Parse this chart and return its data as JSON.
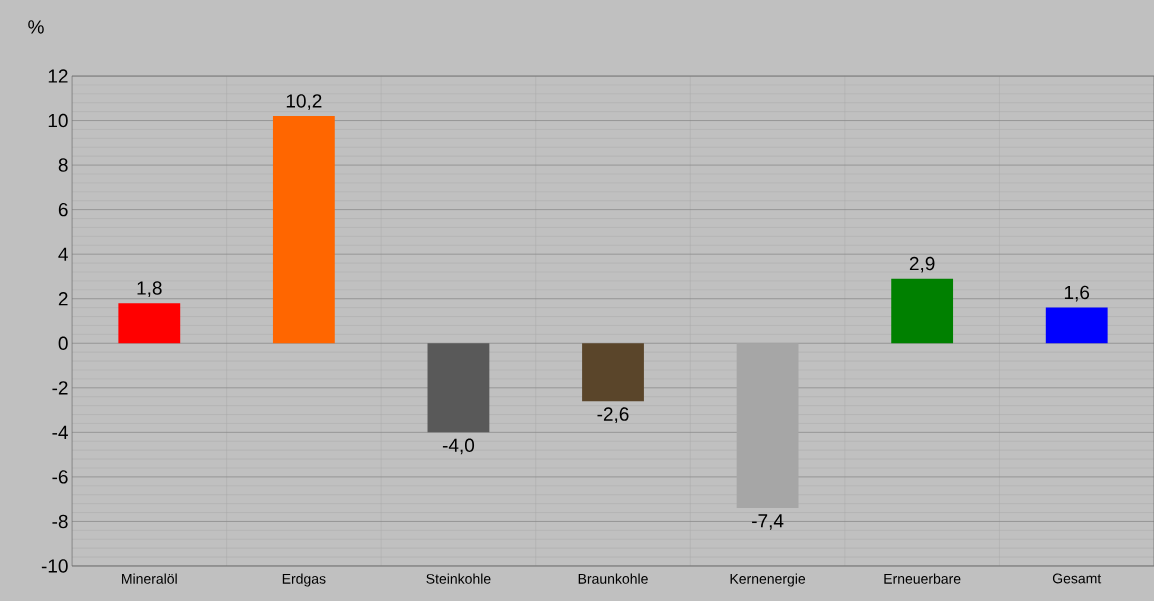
{
  "chart_data": {
    "type": "bar",
    "ylabel": "%",
    "categories": [
      "Mineralöl",
      "Erdgas",
      "Steinkohle",
      "Braunkohle",
      "Kernenergie",
      "Erneuerbare",
      "Gesamt"
    ],
    "values": [
      1.8,
      10.2,
      -4.0,
      -2.6,
      -7.4,
      2.9,
      1.6
    ],
    "colors": [
      "#ff0000",
      "#ff6600",
      "#595959",
      "#5a452a",
      "#a6a6a6",
      "#008000",
      "#0000ff"
    ],
    "value_labels": [
      "1,8",
      "10,2",
      "-4,0",
      "-2,6",
      "-7,4",
      "2,9",
      "1,6"
    ],
    "ylim": [
      -10,
      12
    ],
    "yticks": [
      -10,
      -8,
      -6,
      -4,
      -2,
      0,
      2,
      4,
      6,
      8,
      10,
      12
    ],
    "grid": true
  }
}
